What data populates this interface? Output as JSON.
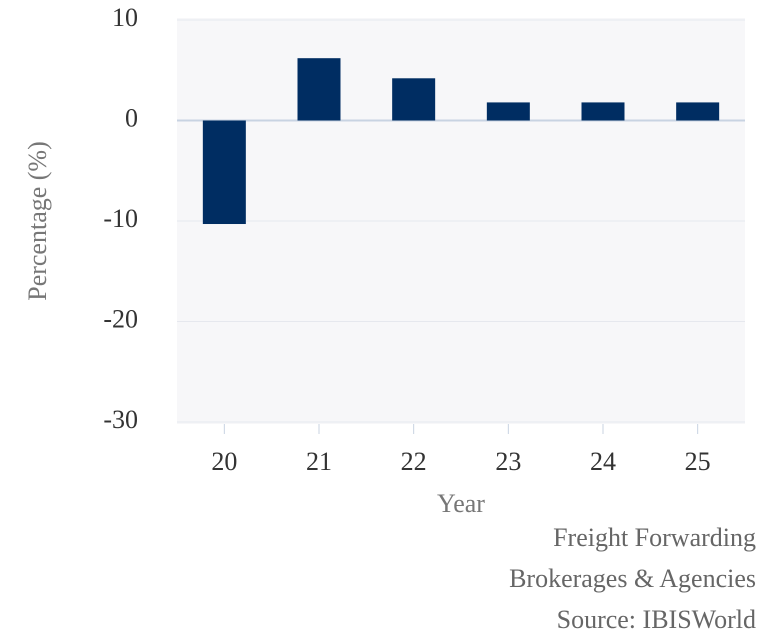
{
  "chart_data": {
    "type": "bar",
    "x_label": "Year",
    "y_label": "Percentage (%)",
    "categories": [
      "20",
      "21",
      "22",
      "23",
      "24",
      "25"
    ],
    "values": [
      -10.3,
      6.2,
      4.2,
      1.8,
      1.8,
      1.8
    ],
    "color": "#002d62",
    "ylim": [
      -30,
      10
    ],
    "yticks": [
      -30,
      -20,
      -10,
      0,
      10
    ],
    "grid": true,
    "credits": [
      "Freight Forwarding",
      "Brokerages & Agencies",
      "Source: IBISWorld"
    ]
  }
}
